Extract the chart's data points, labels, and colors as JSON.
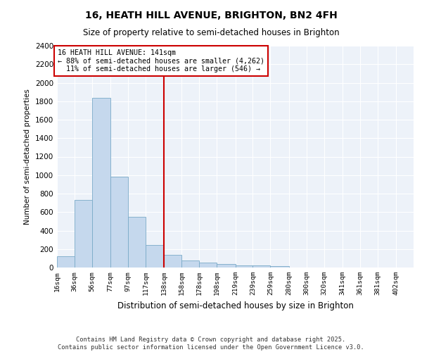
{
  "title_line1": "16, HEATH HILL AVENUE, BRIGHTON, BN2 4FH",
  "title_line2": "Size of property relative to semi-detached houses in Brighton",
  "xlabel": "Distribution of semi-detached houses by size in Brighton",
  "ylabel": "Number of semi-detached properties",
  "property_label": "16 HEATH HILL AVENUE: 141sqm",
  "pct_smaller": 88,
  "count_smaller": 4262,
  "pct_larger": 11,
  "count_larger": 546,
  "vline_x": 138,
  "bin_edges": [
    16,
    36,
    56,
    77,
    97,
    117,
    138,
    158,
    178,
    198,
    219,
    239,
    259,
    280,
    300,
    320,
    341,
    361,
    381,
    402,
    422
  ],
  "bar_heights": [
    120,
    730,
    1840,
    985,
    550,
    245,
    140,
    75,
    55,
    35,
    25,
    20,
    15,
    0,
    0,
    0,
    0,
    0,
    0,
    0
  ],
  "bar_color": "#c5d8ed",
  "bar_edge_color": "#7aaac8",
  "vline_color": "#cc0000",
  "annotation_box_color": "#cc0000",
  "background_color": "#edf2f9",
  "grid_color": "#ffffff",
  "footer_text": "Contains HM Land Registry data © Crown copyright and database right 2025.\nContains public sector information licensed under the Open Government Licence v3.0.",
  "ylim": [
    0,
    2400
  ],
  "yticks": [
    0,
    200,
    400,
    600,
    800,
    1000,
    1200,
    1400,
    1600,
    1800,
    2000,
    2200,
    2400
  ]
}
